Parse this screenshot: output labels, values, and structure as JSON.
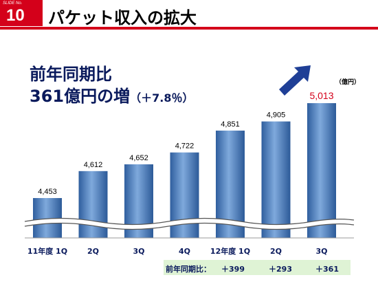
{
  "slide": {
    "no_label": "SLIDE No.",
    "number": "10",
    "title": "パケット収入の拡大"
  },
  "headline": {
    "line1": "前年同期比",
    "line2_main": "361億円の増",
    "line2_pct": "（＋7.8％）"
  },
  "unit_label": "（億円）",
  "colors": {
    "accent_red": "#d4001a",
    "navy": "#0a1a5c",
    "bar": "#4e7fbe",
    "highlight_value": "#d4001a",
    "arrow": "#1f3f96",
    "change_band": "#dff3d5"
  },
  "chart_data": {
    "type": "bar",
    "categories": [
      "11年度 1Q",
      "2Q",
      "3Q",
      "4Q",
      "12年度 1Q",
      "2Q",
      "3Q"
    ],
    "values": [
      4453,
      4612,
      4652,
      4722,
      4851,
      4905,
      5013
    ],
    "value_labels": [
      "4,453",
      "4,612",
      "4,652",
      "4,722",
      "4,851",
      "4,905",
      "5,013"
    ],
    "highlight_index": 6,
    "axis_break": true,
    "ylabel": "（億円）",
    "yoy_label": "前年同期比：",
    "yoy_changes": [
      "＋399",
      "＋293",
      "＋361"
    ]
  },
  "icons": {
    "up_arrow": "trend-up-arrow-icon"
  }
}
